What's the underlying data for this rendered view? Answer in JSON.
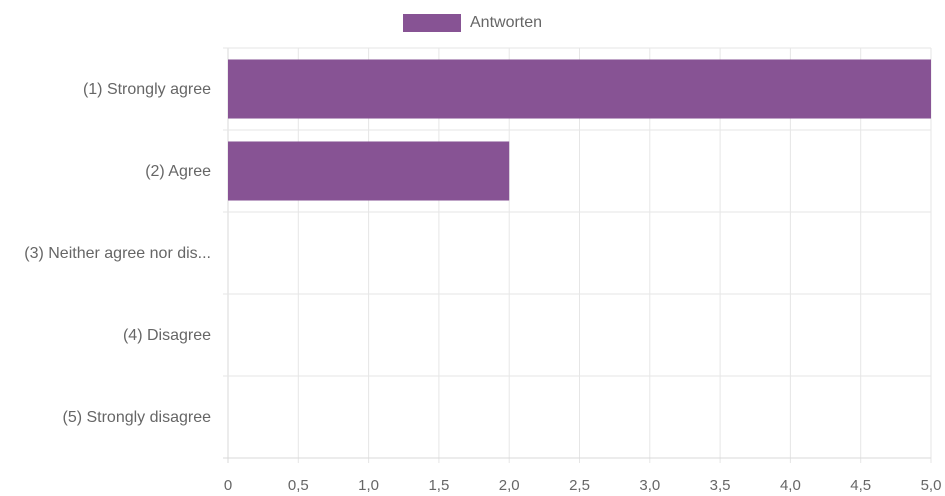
{
  "legend": {
    "label": "Antworten"
  },
  "colors": {
    "bar": "#875394",
    "grid": "#e6e6e6",
    "axis": "#d9d9d9",
    "text": "#666666"
  },
  "chart_data": {
    "type": "bar",
    "orientation": "horizontal",
    "categories": [
      "(1) Strongly agree",
      "(2) Agree",
      "(3) Neither agree nor dis...",
      "(4) Disagree",
      "(5) Strongly disagree"
    ],
    "series": [
      {
        "name": "Antworten",
        "values": [
          5,
          2,
          0,
          0,
          0
        ]
      }
    ],
    "xlim": [
      0,
      5
    ],
    "xticks": [
      "0",
      "0,5",
      "1,0",
      "1,5",
      "2,0",
      "2,5",
      "3,0",
      "3,5",
      "4,0",
      "4,5",
      "5,0"
    ],
    "grid": true,
    "legend_position": "top-center"
  }
}
